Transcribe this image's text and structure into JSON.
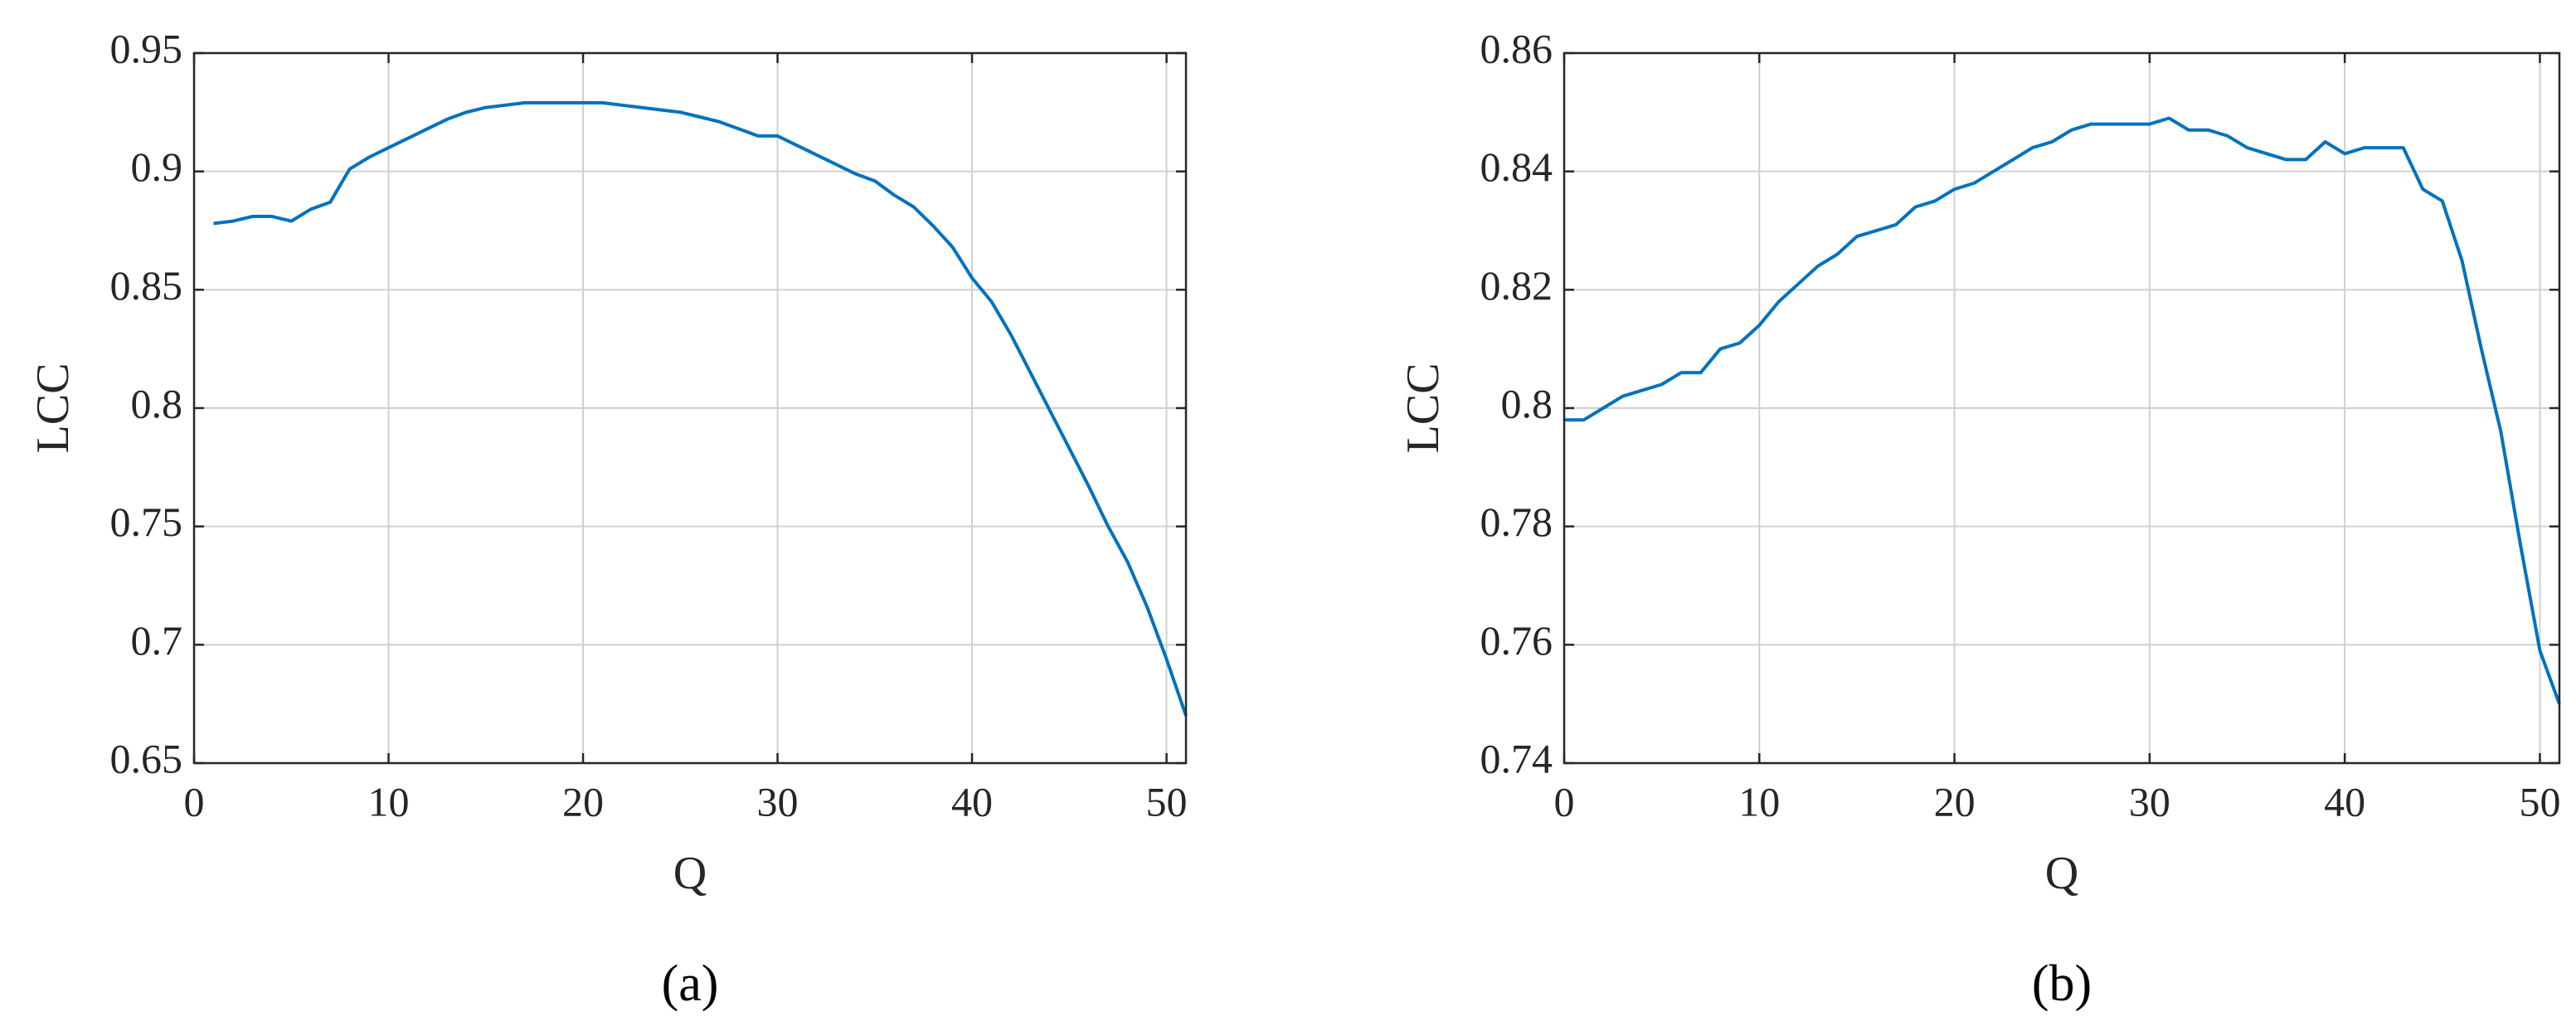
{
  "chart_data": [
    {
      "type": "line",
      "caption": "(a)",
      "xlabel": "Q",
      "ylabel": "LCC",
      "color": "#0072bd",
      "grid": true,
      "xlim": [
        0,
        51
      ],
      "xticks": [
        0,
        10,
        20,
        30,
        40,
        50
      ],
      "ylim": [
        0.65,
        0.95
      ],
      "yticks": [
        0.65,
        0.7,
        0.75,
        0.8,
        0.85,
        0.9,
        0.95
      ],
      "x": [
        1,
        2,
        3,
        4,
        5,
        6,
        7,
        8,
        9,
        10,
        11,
        12,
        13,
        14,
        15,
        16,
        17,
        18,
        19,
        20,
        21,
        22,
        23,
        24,
        25,
        26,
        27,
        28,
        29,
        30,
        31,
        32,
        33,
        34,
        35,
        36,
        37,
        38,
        39,
        40,
        41,
        42,
        43,
        44,
        45,
        46,
        47,
        48,
        49,
        50,
        51
      ],
      "values": [
        0.878,
        0.879,
        0.881,
        0.881,
        0.879,
        0.884,
        0.887,
        0.901,
        0.906,
        0.91,
        0.914,
        0.918,
        0.922,
        0.925,
        0.927,
        0.928,
        0.929,
        0.929,
        0.929,
        0.929,
        0.929,
        0.928,
        0.927,
        0.926,
        0.925,
        0.923,
        0.921,
        0.918,
        0.915,
        0.915,
        0.911,
        0.907,
        0.903,
        0.899,
        0.896,
        0.89,
        0.885,
        0.877,
        0.868,
        0.855,
        0.845,
        0.831,
        0.815,
        0.799,
        0.783,
        0.767,
        0.75,
        0.735,
        0.716,
        0.694,
        0.67
      ]
    },
    {
      "type": "line",
      "caption": "(b)",
      "xlabel": "Q",
      "ylabel": "LCC",
      "color": "#0072bd",
      "grid": true,
      "xlim": [
        0,
        51
      ],
      "xticks": [
        0,
        10,
        20,
        30,
        40,
        50
      ],
      "ylim": [
        0.74,
        0.86
      ],
      "yticks": [
        0.74,
        0.76,
        0.78,
        0.8,
        0.82,
        0.84,
        0.86
      ],
      "x": [
        0,
        1,
        2,
        3,
        4,
        5,
        6,
        7,
        8,
        9,
        10,
        11,
        12,
        13,
        14,
        15,
        16,
        17,
        18,
        19,
        20,
        21,
        22,
        23,
        24,
        25,
        26,
        27,
        28,
        29,
        30,
        31,
        32,
        33,
        34,
        35,
        36,
        37,
        38,
        39,
        40,
        41,
        42,
        43,
        44,
        45,
        46,
        47,
        48,
        49,
        50,
        51
      ],
      "values": [
        0.798,
        0.798,
        0.8,
        0.802,
        0.803,
        0.804,
        0.806,
        0.806,
        0.81,
        0.811,
        0.814,
        0.818,
        0.821,
        0.824,
        0.826,
        0.829,
        0.83,
        0.831,
        0.834,
        0.835,
        0.837,
        0.838,
        0.84,
        0.842,
        0.844,
        0.845,
        0.847,
        0.848,
        0.848,
        0.848,
        0.848,
        0.849,
        0.847,
        0.847,
        0.846,
        0.844,
        0.843,
        0.842,
        0.842,
        0.845,
        0.843,
        0.844,
        0.844,
        0.844,
        0.837,
        0.835,
        0.825,
        0.81,
        0.796,
        0.777,
        0.759,
        0.75
      ]
    }
  ]
}
